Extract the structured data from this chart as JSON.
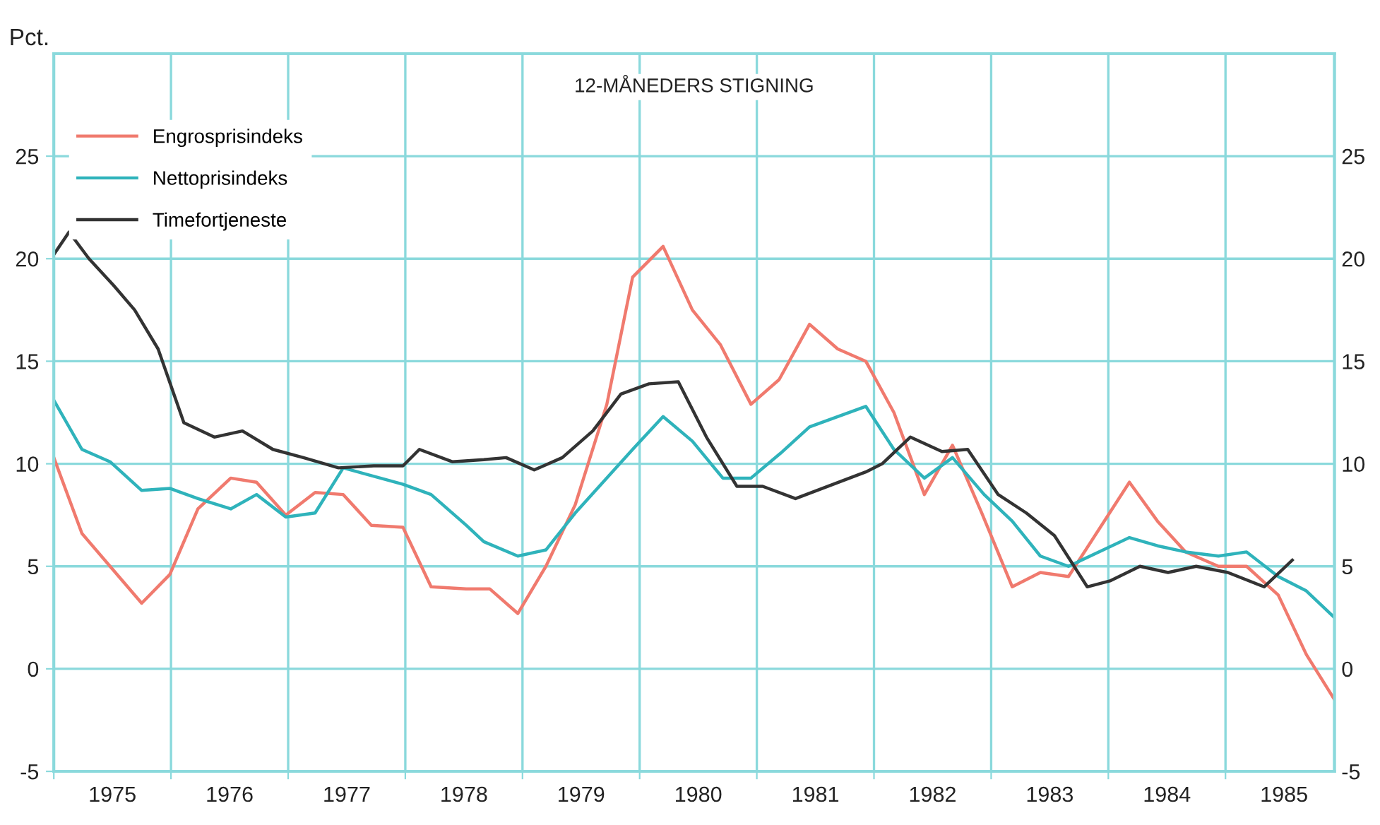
{
  "chart_data": {
    "type": "line",
    "title": "12-MÅNEDERS STIGNING",
    "ylabel": "Pct.",
    "xlim": [
      1975,
      1985.93
    ],
    "ylim": [
      -5,
      30
    ],
    "y2lim": [
      -5,
      30
    ],
    "xticks": [
      {
        "value": 1975,
        "label": null
      },
      {
        "value": 1975.5,
        "label": "1975"
      },
      {
        "value": 1976,
        "label": null
      },
      {
        "value": 1976.5,
        "label": "1976"
      },
      {
        "value": 1977,
        "label": null
      },
      {
        "value": 1977.5,
        "label": "1977"
      },
      {
        "value": 1978,
        "label": null
      },
      {
        "value": 1978.5,
        "label": "1978"
      },
      {
        "value": 1979,
        "label": null
      },
      {
        "value": 1979.5,
        "label": "1979"
      },
      {
        "value": 1980,
        "label": null
      },
      {
        "value": 1980.5,
        "label": "1980"
      },
      {
        "value": 1981,
        "label": null
      },
      {
        "value": 1981.5,
        "label": "1981"
      },
      {
        "value": 1982,
        "label": null
      },
      {
        "value": 1982.5,
        "label": "1982"
      },
      {
        "value": 1983,
        "label": null
      },
      {
        "value": 1983.5,
        "label": "1983"
      },
      {
        "value": 1984,
        "label": null
      },
      {
        "value": 1984.5,
        "label": "1984"
      },
      {
        "value": 1985,
        "label": null
      },
      {
        "value": 1985.5,
        "label": "1985"
      }
    ],
    "yticks": [
      -5,
      0,
      5,
      10,
      15,
      20,
      25
    ],
    "y2ticks": [
      -5,
      0,
      5,
      10,
      15,
      20,
      25
    ],
    "grid": true,
    "legend": "top left",
    "line_style": "solid",
    "marker": "none",
    "series": [
      {
        "name": "Engrosprisindeks",
        "color": "#f07a6e",
        "x": [
          1975.0,
          1975.24,
          1975.75,
          1975.99,
          1976.23,
          1976.51,
          1976.73,
          1976.98,
          1977.23,
          1977.47,
          1977.71,
          1977.98,
          1978.22,
          1978.52,
          1978.72,
          1978.96,
          1979.2,
          1979.45,
          1979.72,
          1979.94,
          1980.2,
          1980.45,
          1980.69,
          1980.95,
          1981.19,
          1981.45,
          1981.69,
          1981.93,
          1982.17,
          1982.43,
          1982.67,
          1982.92,
          1983.18,
          1983.42,
          1983.66,
          1984.18,
          1984.42,
          1984.66,
          1984.94,
          1985.18,
          1985.45,
          1985.69,
          1985.93
        ],
        "values": [
          10.3,
          6.6,
          3.2,
          4.6,
          7.8,
          9.3,
          9.1,
          7.5,
          8.6,
          8.5,
          7.0,
          6.9,
          4.0,
          3.9,
          3.9,
          2.7,
          5.0,
          8.0,
          12.9,
          19.1,
          20.6,
          17.5,
          15.8,
          12.9,
          14.1,
          16.8,
          15.6,
          15.0,
          12.5,
          8.5,
          10.9,
          7.6,
          4.0,
          4.7,
          4.5,
          9.1,
          7.2,
          5.7,
          5.0,
          5.0,
          3.6,
          0.7,
          -1.5
        ]
      },
      {
        "name": "Nettoprisindeks",
        "color": "#2fb3bb",
        "x": [
          1975.0,
          1975.24,
          1975.48,
          1975.75,
          1975.99,
          1976.23,
          1976.51,
          1976.73,
          1976.98,
          1977.23,
          1977.47,
          1977.98,
          1978.22,
          1978.52,
          1978.67,
          1978.96,
          1979.2,
          1979.45,
          1979.94,
          1980.2,
          1980.45,
          1980.71,
          1980.95,
          1981.2,
          1981.45,
          1981.93,
          1982.17,
          1982.43,
          1982.67,
          1982.94,
          1983.18,
          1983.42,
          1983.66,
          1984.18,
          1984.42,
          1984.66,
          1984.94,
          1985.18,
          1985.45,
          1985.69,
          1985.93
        ],
        "values": [
          13.1,
          10.7,
          10.1,
          8.7,
          8.8,
          8.3,
          7.8,
          8.5,
          7.4,
          7.6,
          9.8,
          9.0,
          8.5,
          7.0,
          6.2,
          5.5,
          5.8,
          7.6,
          10.7,
          12.3,
          11.1,
          9.3,
          9.3,
          10.5,
          11.8,
          12.8,
          10.7,
          9.3,
          10.3,
          8.5,
          7.2,
          5.5,
          5.0,
          6.4,
          6.0,
          5.7,
          5.5,
          5.7,
          4.5,
          3.8,
          2.5
        ]
      },
      {
        "name": "Timefortjeneste",
        "color": "#333333",
        "x": [
          1975.0,
          1975.13,
          1975.3,
          1975.51,
          1975.69,
          1975.89,
          1976.11,
          1976.37,
          1976.61,
          1976.87,
          1977.13,
          1977.43,
          1977.73,
          1977.98,
          1978.12,
          1978.4,
          1978.67,
          1978.86,
          1979.1,
          1979.34,
          1979.6,
          1979.84,
          1980.08,
          1980.33,
          1980.57,
          1980.83,
          1981.05,
          1981.33,
          1981.93,
          1982.07,
          1982.31,
          1982.58,
          1982.8,
          1983.06,
          1983.3,
          1983.54,
          1983.82,
          1984.02,
          1984.27,
          1984.51,
          1984.75,
          1985.02,
          1985.33,
          1985.57
        ],
        "values": [
          20.2,
          21.3,
          20.0,
          18.7,
          17.5,
          15.6,
          12.0,
          11.3,
          11.6,
          10.7,
          10.3,
          9.8,
          9.9,
          9.9,
          10.7,
          10.1,
          10.2,
          10.3,
          9.7,
          10.3,
          11.6,
          13.4,
          13.9,
          14.0,
          11.3,
          8.9,
          8.9,
          8.3,
          9.6,
          10.0,
          11.3,
          10.6,
          10.7,
          8.5,
          7.6,
          6.5,
          4.0,
          4.3,
          5.0,
          4.7,
          5.0,
          4.7,
          4.0,
          5.3
        ]
      }
    ]
  }
}
